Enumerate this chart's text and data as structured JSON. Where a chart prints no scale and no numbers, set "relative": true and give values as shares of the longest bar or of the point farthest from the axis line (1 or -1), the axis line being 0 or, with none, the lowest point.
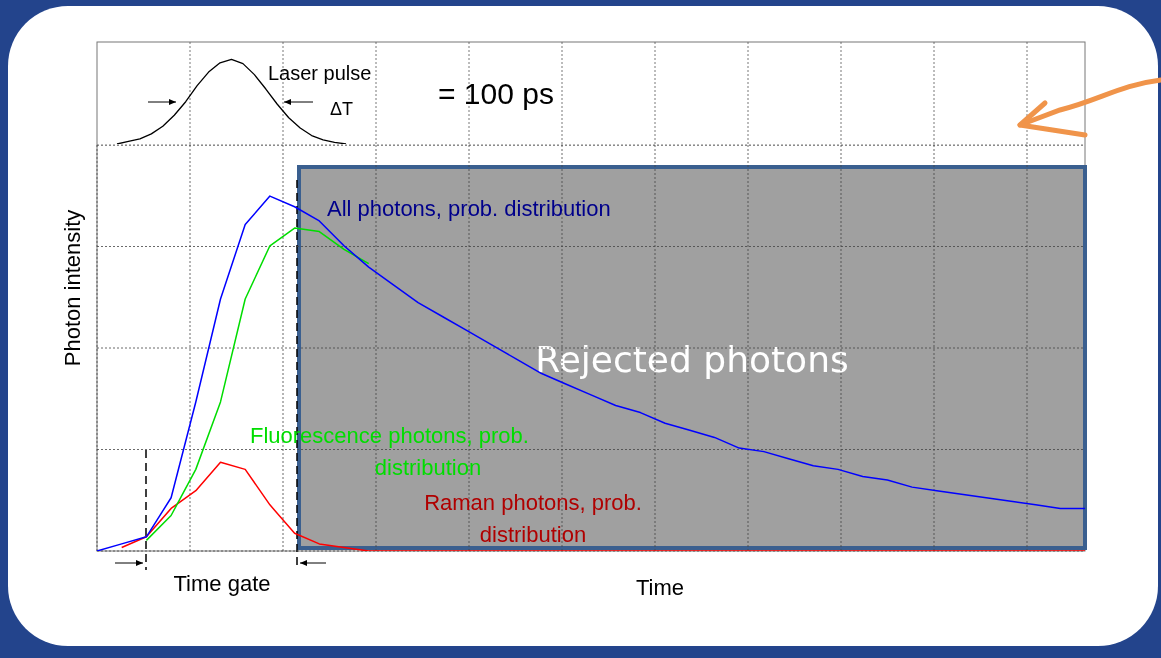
{
  "chart_data": [
    {
      "type": "line",
      "relative": true,
      "grid": "x",
      "legend": false,
      "marker": "none",
      "line_style": "solid",
      "categories": [
        null,
        null,
        null,
        null,
        null,
        null,
        null,
        null,
        null,
        null,
        null,
        null,
        null,
        null,
        null,
        null,
        null,
        null,
        null,
        null,
        null
      ],
      "series": [
        {
          "color": "#000000",
          "values": [
            0,
            0.03,
            0.06,
            0.12,
            0.21,
            0.34,
            0.5,
            0.69,
            0.85,
            0.96,
            1.0,
            0.95,
            0.82,
            0.65,
            0.47,
            0.31,
            0.19,
            0.1,
            0.05,
            0.02,
            0
          ]
        }
      ],
      "annotations": [
        "Laser pulse",
        "ΔT",
        "= 100 ps"
      ]
    },
    {
      "type": "line",
      "relative": true,
      "xlabel": "Time",
      "ylabel": "Photon intensity",
      "grid": true,
      "legend": false,
      "marker": "none",
      "line_style": "solid",
      "categories": [
        null,
        null,
        null,
        null,
        null,
        null,
        null,
        null,
        null,
        null,
        null,
        null,
        null,
        null,
        null,
        null,
        null,
        null,
        null,
        null,
        null,
        null,
        null,
        null,
        null,
        null,
        null,
        null,
        null,
        null,
        null,
        null,
        null,
        null,
        null,
        null,
        null,
        null,
        null,
        null,
        null
      ],
      "series": [
        {
          "name": "All photons, prob. distribution",
          "color": "#0000ff",
          "values": [
            0,
            0.02,
            0.04,
            0.15,
            0.42,
            0.71,
            0.92,
            1.0,
            0.97,
            0.93,
            0.86,
            0.8,
            0.75,
            0.7,
            0.66,
            0.62,
            0.58,
            0.54,
            0.5,
            0.47,
            0.44,
            0.41,
            0.39,
            0.36,
            0.34,
            0.32,
            0.29,
            0.28,
            0.26,
            0.24,
            0.23,
            0.21,
            0.2,
            0.18,
            0.17,
            0.16,
            0.15,
            0.14,
            0.13,
            0.12,
            0.12
          ]
        },
        {
          "name": "Fluorescence photons, prob. distribution",
          "color": "#00dd00",
          "values": [
            null,
            null,
            0.03,
            0.1,
            0.23,
            0.42,
            0.71,
            0.86,
            0.91,
            0.9,
            0.85,
            0.81,
            null,
            null,
            null,
            null,
            null,
            null,
            null,
            null,
            null,
            null,
            null,
            null,
            null,
            null,
            null,
            null,
            null,
            null,
            null,
            null,
            null,
            null,
            null,
            null,
            null,
            null,
            null,
            null,
            null
          ]
        },
        {
          "name": "Raman photons, prob. distribution",
          "color": "#ff0000",
          "values": [
            null,
            0.01,
            0.04,
            0.12,
            0.17,
            0.25,
            0.23,
            0.13,
            0.05,
            0.02,
            0.01,
            0,
            0,
            0,
            0,
            0,
            0,
            0,
            0,
            0,
            0,
            0,
            0,
            0,
            0,
            0,
            0,
            0,
            0,
            0,
            0,
            0,
            0,
            0,
            0,
            0,
            0,
            0,
            0,
            0,
            0
          ]
        }
      ],
      "annotations": [
        "Rejected photons",
        "Time gate"
      ]
    }
  ]
}
